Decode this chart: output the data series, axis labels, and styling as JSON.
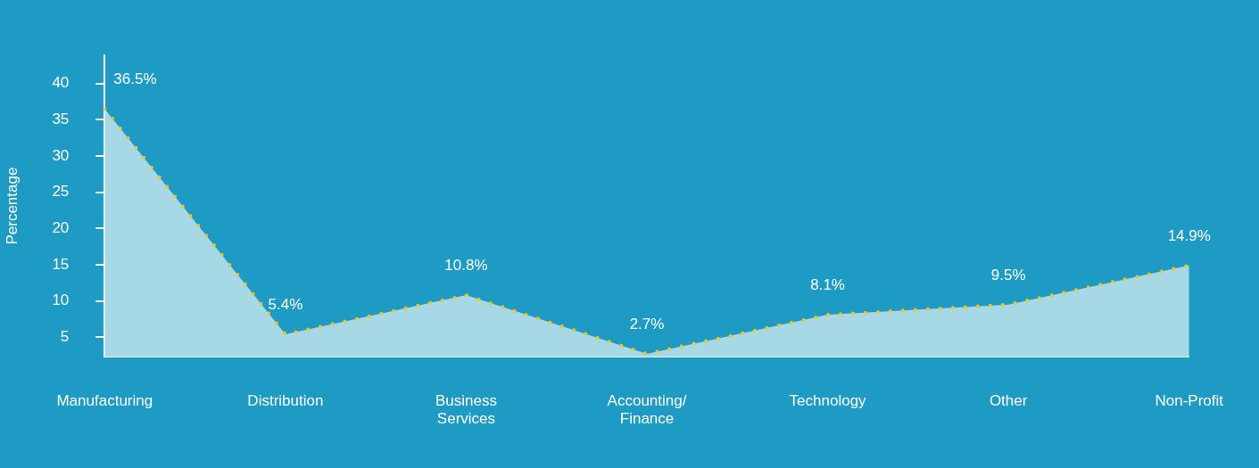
{
  "chart_data": {
    "type": "area",
    "ylabel": "Percentage",
    "categories": [
      "Manufacturing",
      "Distribution",
      "Business Services",
      "Accounting/Finance",
      "Technology",
      "Other",
      "Non-Profit"
    ],
    "series": [
      {
        "color": "#a7d8e6",
        "values": [
          36.5,
          5.4,
          10.8,
          2.7,
          8.1,
          9.5,
          14.9
        ],
        "value_labels": [
          "36.5%",
          "5.4%",
          "10.8%",
          "2.7%",
          "8.1%",
          "9.5%",
          "14.9%"
        ]
      },
      {
        "type": "line",
        "color": "#f5c518",
        "line_style": "dotted",
        "marker": "none",
        "values": [
          36.5,
          5.4,
          10.8,
          2.7,
          8.1,
          9.5,
          14.9
        ]
      }
    ],
    "ylim": [
      2.3,
      43.9
    ],
    "yticks": [
      5,
      10,
      15,
      20,
      25,
      30,
      35,
      40
    ],
    "grid": false,
    "legend": false
  }
}
